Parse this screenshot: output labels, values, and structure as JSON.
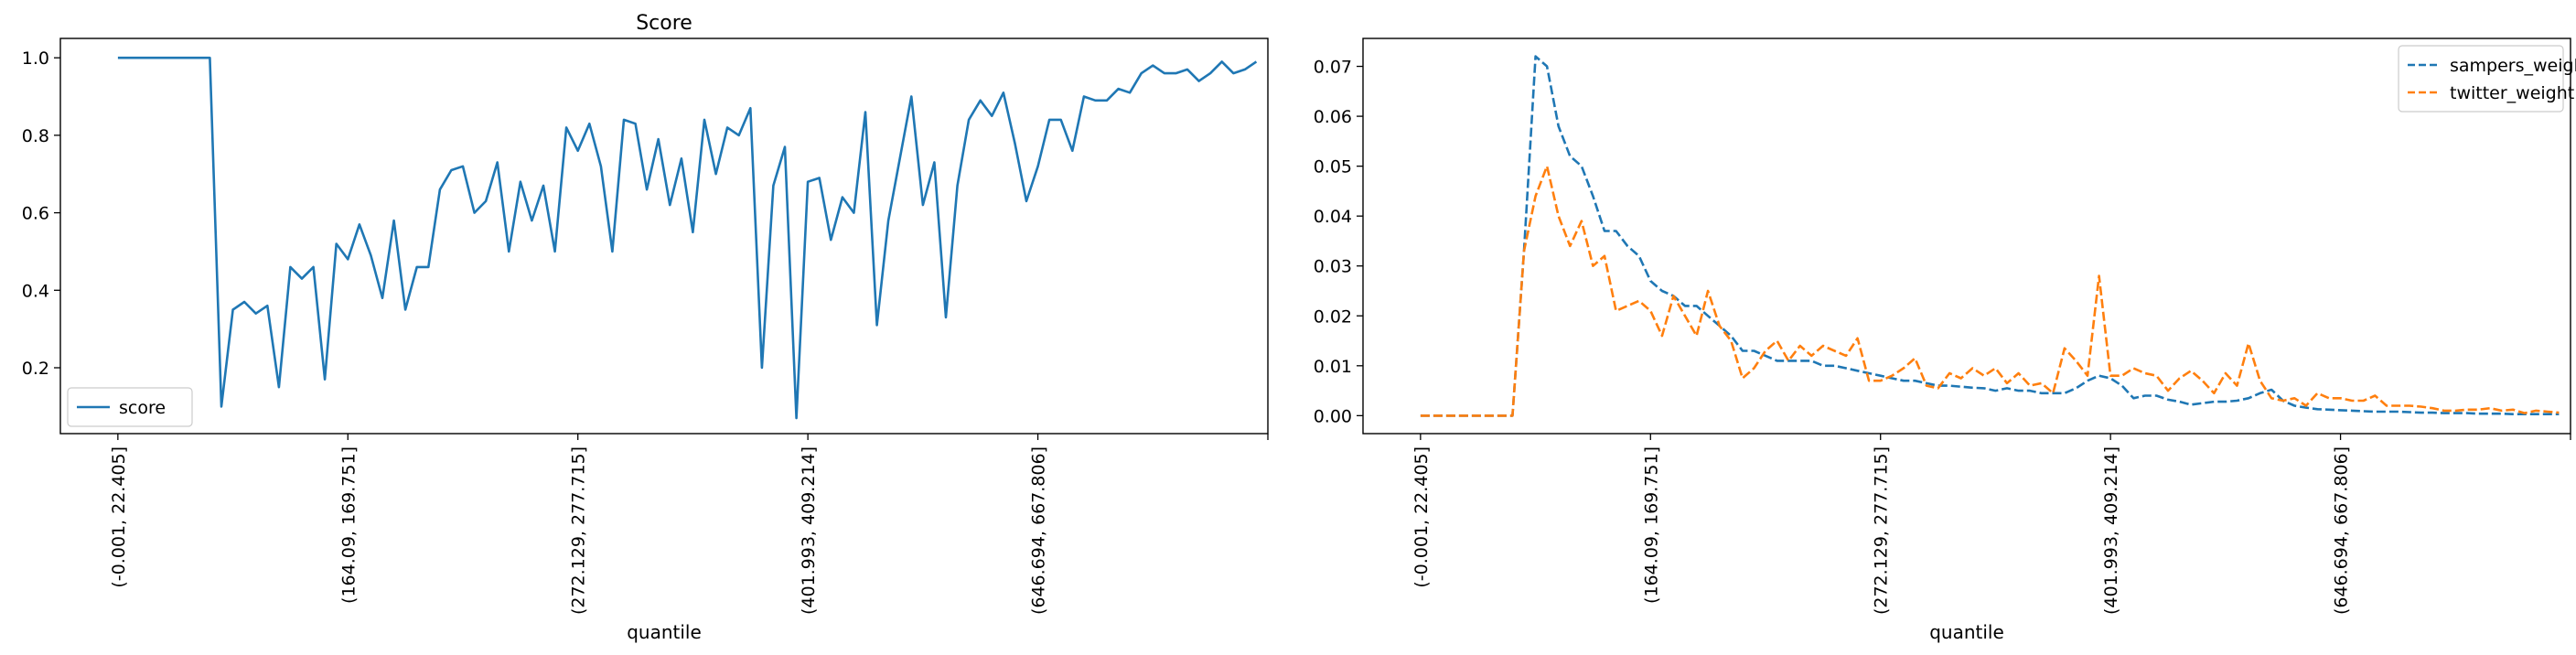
{
  "chart_data": [
    {
      "type": "line",
      "title": "Score",
      "xlabel": "quantile",
      "ylabel": "",
      "xlim": [
        -5,
        100
      ],
      "ylim": [
        0.03,
        1.05
      ],
      "yticks": [
        0.2,
        0.4,
        0.6,
        0.8,
        1.0
      ],
      "ytick_labels": [
        "0.2",
        "0.4",
        "0.6",
        "0.8",
        "1.0"
      ],
      "xticks": [
        0,
        20,
        40,
        60,
        80,
        100
      ],
      "xtick_labels": [
        "(-0.001, 22.405]",
        "(164.09, 169.751]",
        "(272.129, 277.715]",
        "(401.993, 409.214]",
        "(646.694, 667.806]",
        ""
      ],
      "legend_loc": "lower-left",
      "grid": false,
      "series": [
        {
          "name": "score",
          "color": "#1f77b4",
          "dash": "solid",
          "values": [
            1.0,
            1.0,
            1.0,
            1.0,
            1.0,
            1.0,
            1.0,
            1.0,
            1.0,
            0.1,
            0.35,
            0.37,
            0.34,
            0.36,
            0.15,
            0.46,
            0.43,
            0.46,
            0.17,
            0.52,
            0.48,
            0.57,
            0.49,
            0.38,
            0.58,
            0.35,
            0.46,
            0.46,
            0.66,
            0.71,
            0.72,
            0.6,
            0.63,
            0.73,
            0.5,
            0.68,
            0.58,
            0.67,
            0.5,
            0.82,
            0.76,
            0.83,
            0.72,
            0.5,
            0.84,
            0.83,
            0.66,
            0.79,
            0.62,
            0.74,
            0.55,
            0.84,
            0.7,
            0.82,
            0.8,
            0.87,
            0.2,
            0.67,
            0.77,
            0.07,
            0.68,
            0.69,
            0.53,
            0.64,
            0.6,
            0.86,
            0.31,
            0.58,
            0.74,
            0.9,
            0.62,
            0.73,
            0.33,
            0.67,
            0.84,
            0.89,
            0.85,
            0.91,
            0.78,
            0.63,
            0.72,
            0.84,
            0.84,
            0.76,
            0.9,
            0.89,
            0.89,
            0.92,
            0.91,
            0.96,
            0.98,
            0.96,
            0.96,
            0.97,
            0.94,
            0.96,
            0.99,
            0.96,
            0.97,
            0.99
          ]
        }
      ]
    },
    {
      "type": "line",
      "title": "",
      "xlabel": "quantile",
      "ylabel": "",
      "xlim": [
        -5,
        100
      ],
      "ylim": [
        -0.0036,
        0.0756
      ],
      "yticks": [
        0.0,
        0.01,
        0.02,
        0.03,
        0.04,
        0.05,
        0.06,
        0.07
      ],
      "ytick_labels": [
        "0.00",
        "0.01",
        "0.02",
        "0.03",
        "0.04",
        "0.05",
        "0.06",
        "0.07"
      ],
      "xticks": [
        0,
        20,
        40,
        60,
        80,
        100
      ],
      "xtick_labels": [
        "(-0.001, 22.405]",
        "(164.09, 169.751]",
        "(272.129, 277.715]",
        "(401.993, 409.214]",
        "(646.694, 667.806]",
        ""
      ],
      "legend_loc": "top-right",
      "grid": false,
      "series": [
        {
          "name": "sampers_weight",
          "color": "#1f77b4",
          "dash": "dashed",
          "values": [
            0,
            0,
            0,
            0,
            0,
            0,
            0,
            0,
            0,
            0.033,
            0.072,
            0.07,
            0.058,
            0.052,
            0.05,
            0.044,
            0.037,
            0.037,
            0.034,
            0.032,
            0.027,
            0.025,
            0.024,
            0.022,
            0.022,
            0.02,
            0.018,
            0.016,
            0.013,
            0.013,
            0.012,
            0.011,
            0.011,
            0.011,
            0.011,
            0.01,
            0.01,
            0.0095,
            0.009,
            0.0085,
            0.008,
            0.0075,
            0.007,
            0.007,
            0.0065,
            0.006,
            0.006,
            0.0058,
            0.0056,
            0.0055,
            0.005,
            0.0055,
            0.005,
            0.005,
            0.0045,
            0.0045,
            0.0045,
            0.0055,
            0.007,
            0.008,
            0.0075,
            0.006,
            0.0035,
            0.004,
            0.004,
            0.0032,
            0.0028,
            0.0022,
            0.0025,
            0.0028,
            0.0028,
            0.003,
            0.0035,
            0.0045,
            0.0052,
            0.003,
            0.002,
            0.0016,
            0.0013,
            0.0012,
            0.0011,
            0.001,
            0.0009,
            0.0008,
            0.0008,
            0.0008,
            0.0007,
            0.0006,
            0.0006,
            0.0005,
            0.0005,
            0.0005,
            0.0004,
            0.0004,
            0.0004,
            0.0003,
            0.0003,
            0.0003,
            0.0003,
            0.0003
          ]
        },
        {
          "name": "twitter_weight",
          "color": "#ff7f0e",
          "dash": "dashed",
          "values": [
            0,
            0,
            0,
            0,
            0,
            0,
            0,
            0,
            0,
            0.033,
            0.044,
            0.05,
            0.04,
            0.034,
            0.039,
            0.03,
            0.032,
            0.021,
            0.022,
            0.023,
            0.021,
            0.016,
            0.024,
            0.02,
            0.016,
            0.025,
            0.018,
            0.015,
            0.0075,
            0.0095,
            0.013,
            0.015,
            0.011,
            0.014,
            0.012,
            0.014,
            0.013,
            0.012,
            0.0155,
            0.007,
            0.007,
            0.008,
            0.0095,
            0.0115,
            0.006,
            0.0055,
            0.0085,
            0.0075,
            0.0095,
            0.008,
            0.0095,
            0.0065,
            0.0085,
            0.006,
            0.0065,
            0.0045,
            0.0135,
            0.011,
            0.008,
            0.028,
            0.008,
            0.008,
            0.0095,
            0.0085,
            0.008,
            0.005,
            0.0075,
            0.009,
            0.007,
            0.0045,
            0.0085,
            0.006,
            0.0145,
            0.007,
            0.0035,
            0.003,
            0.0035,
            0.002,
            0.0045,
            0.0035,
            0.0035,
            0.003,
            0.003,
            0.004,
            0.002,
            0.002,
            0.002,
            0.0018,
            0.0015,
            0.001,
            0.001,
            0.0012,
            0.0012,
            0.0015,
            0.001,
            0.0012,
            0.0005,
            0.001,
            0.0008,
            0.0006
          ]
        }
      ]
    }
  ]
}
